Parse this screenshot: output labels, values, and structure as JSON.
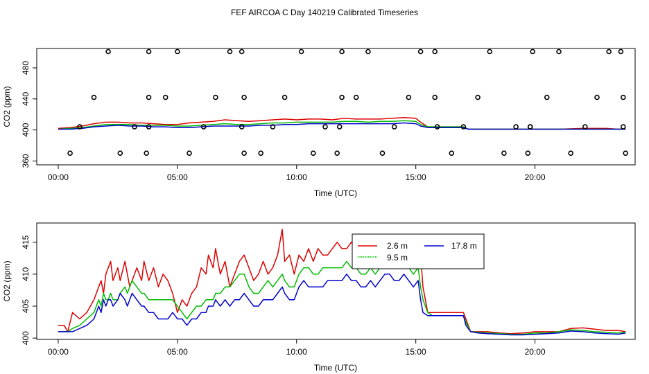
{
  "title": "FEF AIRCOA C  Day 140219  Calibrated Timeseries",
  "colors": {
    "series_2_6": "#dd0000",
    "series_9_5": "#00bb00",
    "series_17_8": "#0000cc",
    "axis": "#000000",
    "markers": "#000000"
  },
  "chart_data": [
    {
      "type": "scatter+line",
      "xlabel": "Time (UTC)",
      "ylabel": "CO2 (ppm)",
      "xlim": [
        -0.9,
        24.2
      ],
      "ylim": [
        355,
        505
      ],
      "xticks": [
        0,
        5,
        10,
        15,
        20
      ],
      "xtick_labels": [
        "00:00",
        "05:00",
        "10:00",
        "15:00",
        "20:00"
      ],
      "yticks": [
        360,
        400,
        440,
        480
      ],
      "ytick_labels": [
        "360",
        "400",
        "440",
        "480"
      ],
      "series": [
        {
          "name": "2.6 m",
          "color": "#dd0000",
          "x": [
            0,
            0.5,
            1,
            1.5,
            2,
            2.5,
            3,
            3.5,
            4,
            4.5,
            5,
            5.5,
            6,
            6.5,
            7,
            7.5,
            8,
            8.5,
            9,
            9.5,
            10,
            10.5,
            11,
            11.5,
            12,
            12.5,
            13,
            13.5,
            14,
            14.5,
            15,
            15.2,
            15.5,
            16,
            16.5,
            17,
            17.2,
            18,
            19,
            20,
            21,
            22,
            22.5,
            23,
            23.5,
            23.8
          ],
          "y": [
            402,
            403,
            405,
            408,
            410,
            410,
            409,
            409,
            408,
            407,
            407,
            409,
            410,
            411,
            413,
            412,
            411,
            412,
            413,
            414,
            413,
            414,
            414,
            413,
            415,
            414,
            414,
            414,
            415,
            416,
            415,
            410,
            404,
            404,
            404,
            404,
            401,
            401,
            401,
            401,
            401,
            402,
            402,
            402,
            401,
            401
          ]
        },
        {
          "name": "9.5 m",
          "color": "#00bb00",
          "x": [
            0,
            0.5,
            1,
            1.5,
            2,
            2.5,
            3,
            3.5,
            4,
            4.5,
            5,
            5.5,
            6,
            6.5,
            7,
            7.5,
            8,
            8.5,
            9,
            9.5,
            10,
            10.5,
            11,
            11.5,
            12,
            12.5,
            13,
            13.5,
            14,
            14.5,
            15,
            15.2,
            15.5,
            16,
            16.5,
            17,
            17.2,
            18,
            19,
            20,
            21,
            22,
            22.5,
            23,
            23.5,
            23.8
          ],
          "y": [
            401,
            402,
            403,
            405,
            407,
            407,
            407,
            406,
            406,
            406,
            405,
            405,
            406,
            407,
            408,
            407,
            407,
            408,
            409,
            409,
            410,
            410,
            410,
            410,
            411,
            411,
            410,
            411,
            411,
            412,
            411,
            407,
            404,
            404,
            404,
            404,
            401,
            401,
            401,
            401,
            401,
            401,
            401,
            401,
            401,
            401
          ]
        },
        {
          "name": "17.8 m",
          "color": "#0000cc",
          "x": [
            0,
            0.5,
            1,
            1.5,
            2,
            2.5,
            3,
            3.5,
            4,
            4.5,
            5,
            5.5,
            6,
            6.5,
            7,
            7.5,
            8,
            8.5,
            9,
            9.5,
            10,
            10.5,
            11,
            11.5,
            12,
            12.5,
            13,
            13.5,
            14,
            14.5,
            15,
            15.2,
            15.5,
            16,
            16.5,
            17,
            17.2,
            18,
            19,
            20,
            21,
            22,
            22.5,
            23,
            23.5,
            23.8
          ],
          "y": [
            401,
            401,
            402,
            404,
            405,
            406,
            405,
            405,
            404,
            404,
            403,
            403,
            404,
            405,
            405,
            405,
            405,
            406,
            406,
            407,
            407,
            408,
            408,
            408,
            408,
            408,
            408,
            408,
            408,
            409,
            408,
            405,
            403,
            403,
            403,
            403,
            401,
            401,
            401,
            401,
            401,
            401,
            401,
            401,
            401,
            401
          ]
        }
      ],
      "markers": {
        "x": [
          0.5,
          0.9,
          1.5,
          2.1,
          2.6,
          3.2,
          3.7,
          3.8,
          3.8,
          3.8,
          4.5,
          5.0,
          5.5,
          6.1,
          6.6,
          7.2,
          7.7,
          7.7,
          7.8,
          7.8,
          8.5,
          9.0,
          9.5,
          10.2,
          10.7,
          11.2,
          11.7,
          11.8,
          11.9,
          11.9,
          12.5,
          13.0,
          13.6,
          14.1,
          14.7,
          15.2,
          15.8,
          15.8,
          15.9,
          16.5,
          17.0,
          17.6,
          18.1,
          18.7,
          19.2,
          19.7,
          19.8,
          19.8,
          19.9,
          20.5,
          21.0,
          21.5,
          22.1,
          22.6,
          23.1,
          23.6,
          23.7,
          23.7,
          23.8
        ],
        "y": [
          370,
          404,
          442,
          501,
          370,
          404,
          370,
          442,
          404,
          501,
          442,
          501,
          370,
          404,
          442,
          501,
          404,
          501,
          442,
          370,
          370,
          404,
          442,
          501,
          370,
          404,
          370,
          404,
          442,
          501,
          442,
          501,
          370,
          404,
          442,
          501,
          442,
          501,
          404,
          370,
          404,
          442,
          501,
          370,
          404,
          370,
          404,
          404,
          501,
          442,
          501,
          370,
          404,
          442,
          501,
          501,
          442,
          404,
          370
        ]
      }
    },
    {
      "type": "line",
      "xlabel": "Time (UTC)",
      "ylabel": "CO2 (ppm)",
      "xlim": [
        -0.9,
        24.2
      ],
      "ylim": [
        399.8,
        418
      ],
      "xticks": [
        0,
        5,
        10,
        15,
        20
      ],
      "xtick_labels": [
        "00:00",
        "05:00",
        "10:00",
        "15:00",
        "20:00"
      ],
      "yticks": [
        400,
        405,
        410,
        415
      ],
      "ytick_labels": [
        "400",
        "405",
        "410",
        "415"
      ],
      "series": [
        {
          "name": "2.6 m",
          "color": "#dd0000",
          "x": [
            0,
            0.25,
            0.4,
            0.6,
            0.9,
            1.2,
            1.5,
            1.7,
            1.8,
            1.9,
            2.0,
            2.1,
            2.2,
            2.3,
            2.5,
            2.6,
            2.8,
            2.9,
            3.0,
            3.1,
            3.3,
            3.5,
            3.6,
            3.8,
            4.0,
            4.2,
            4.4,
            4.6,
            4.8,
            5.0,
            5.2,
            5.4,
            5.6,
            5.8,
            6.0,
            6.2,
            6.3,
            6.5,
            6.6,
            6.8,
            7.0,
            7.2,
            7.4,
            7.6,
            7.8,
            8.0,
            8.2,
            8.4,
            8.6,
            8.8,
            9.0,
            9.2,
            9.4,
            9.5,
            9.7,
            9.9,
            10.1,
            10.3,
            10.5,
            10.7,
            10.9,
            11.1,
            11.3,
            11.5,
            11.7,
            11.9,
            12.1,
            12.3,
            12.5,
            12.7,
            12.9,
            13.1,
            13.3,
            13.5,
            13.7,
            13.9,
            14.1,
            14.3,
            14.5,
            14.7,
            14.9,
            15.1,
            15.2,
            15.3,
            15.5,
            15.7,
            16.0,
            16.5,
            17.0,
            17.1,
            17.3,
            17.6,
            18.0,
            18.5,
            19.0,
            19.5,
            20.0,
            20.5,
            21.0,
            21.5,
            22.0,
            22.5,
            23.0,
            23.5,
            23.8
          ],
          "y": [
            402,
            402,
            401,
            404,
            403,
            404,
            406,
            408,
            409,
            407,
            410,
            411,
            412,
            409,
            411,
            409,
            412,
            410,
            408,
            409,
            411,
            409,
            412,
            409,
            411,
            408,
            410,
            409,
            407,
            404,
            406,
            405,
            407,
            408,
            411,
            410,
            413,
            411,
            414,
            410,
            412,
            408,
            410,
            412,
            413,
            411,
            409,
            410,
            412,
            410,
            411,
            413,
            417,
            412,
            413,
            410,
            413,
            412,
            414,
            412,
            414,
            413,
            413,
            414,
            415,
            414,
            414,
            415,
            414,
            414,
            413,
            415,
            414,
            414,
            416,
            414,
            414,
            415,
            416,
            414,
            412,
            416,
            413,
            408,
            404,
            404,
            404,
            404,
            404,
            403,
            401,
            401,
            401,
            400.8,
            400.7,
            400.8,
            401,
            401,
            401,
            401.5,
            401.6,
            401.4,
            401.2,
            401.2,
            401
          ]
        },
        {
          "name": "9.5 m",
          "color": "#00bb00",
          "x": [
            0,
            0.25,
            0.4,
            0.6,
            0.9,
            1.2,
            1.5,
            1.7,
            1.8,
            1.9,
            2.0,
            2.1,
            2.2,
            2.3,
            2.5,
            2.6,
            2.8,
            2.9,
            3.0,
            3.1,
            3.3,
            3.5,
            3.6,
            3.8,
            4.0,
            4.2,
            4.4,
            4.6,
            4.8,
            5.0,
            5.2,
            5.4,
            5.6,
            5.8,
            6.0,
            6.2,
            6.3,
            6.5,
            6.6,
            6.8,
            7.0,
            7.2,
            7.4,
            7.6,
            7.8,
            8.0,
            8.2,
            8.4,
            8.6,
            8.8,
            9.0,
            9.2,
            9.4,
            9.5,
            9.7,
            9.9,
            10.1,
            10.3,
            10.5,
            10.7,
            10.9,
            11.1,
            11.3,
            11.5,
            11.7,
            11.9,
            12.1,
            12.3,
            12.5,
            12.7,
            12.9,
            13.1,
            13.3,
            13.5,
            13.7,
            13.9,
            14.1,
            14.3,
            14.5,
            14.7,
            14.9,
            15.1,
            15.2,
            15.3,
            15.5,
            15.7,
            16.0,
            16.5,
            17.0,
            17.1,
            17.3,
            17.6,
            18.0,
            18.5,
            19.0,
            19.5,
            20.0,
            20.5,
            21.0,
            21.5,
            22.0,
            22.5,
            23.0,
            23.5,
            23.8
          ],
          "y": [
            401,
            401,
            401,
            401.5,
            402,
            403,
            404,
            406,
            405,
            407,
            406,
            406,
            407,
            406,
            406,
            407,
            408,
            407,
            408,
            409,
            408,
            407,
            407,
            406,
            406,
            406,
            406,
            406,
            406,
            405,
            404,
            403,
            404,
            405,
            405,
            406,
            406,
            406,
            407,
            407,
            408,
            408,
            409,
            410,
            410,
            408,
            407,
            407,
            408,
            409,
            408,
            409,
            410,
            409,
            408,
            408,
            410,
            411,
            411,
            410,
            410,
            411,
            411,
            411,
            411,
            411,
            412,
            411,
            411,
            410,
            410,
            411,
            410,
            411,
            412,
            412,
            411,
            411,
            412,
            411,
            410,
            411,
            408,
            406,
            404,
            403.5,
            403.5,
            403.5,
            403.5,
            402.5,
            401,
            400.9,
            400.8,
            400.7,
            400.6,
            400.6,
            400.8,
            400.8,
            401,
            401.3,
            401.2,
            401,
            400.9,
            400.8,
            400.9
          ]
        },
        {
          "name": "17.8 m",
          "color": "#0000cc",
          "x": [
            0,
            0.25,
            0.4,
            0.6,
            0.9,
            1.2,
            1.5,
            1.7,
            1.8,
            1.9,
            2.0,
            2.1,
            2.2,
            2.3,
            2.5,
            2.6,
            2.8,
            2.9,
            3.0,
            3.1,
            3.3,
            3.5,
            3.6,
            3.8,
            4.0,
            4.2,
            4.4,
            4.6,
            4.8,
            5.0,
            5.2,
            5.4,
            5.6,
            5.8,
            6.0,
            6.2,
            6.3,
            6.5,
            6.6,
            6.8,
            7.0,
            7.2,
            7.4,
            7.6,
            7.8,
            8.0,
            8.2,
            8.4,
            8.6,
            8.8,
            9.0,
            9.2,
            9.4,
            9.5,
            9.7,
            9.9,
            10.1,
            10.3,
            10.5,
            10.7,
            10.9,
            11.1,
            11.3,
            11.5,
            11.7,
            11.9,
            12.1,
            12.3,
            12.5,
            12.7,
            12.9,
            13.1,
            13.3,
            13.5,
            13.7,
            13.9,
            14.1,
            14.3,
            14.5,
            14.7,
            14.9,
            15.1,
            15.2,
            15.3,
            15.5,
            15.7,
            16.0,
            16.5,
            17.0,
            17.1,
            17.3,
            17.6,
            18.0,
            18.5,
            19.0,
            19.5,
            20.0,
            20.5,
            21.0,
            21.5,
            22.0,
            22.5,
            23.0,
            23.5,
            23.8
          ],
          "y": [
            401,
            401,
            401,
            401,
            401.5,
            402,
            403,
            405,
            404,
            406,
            405,
            406,
            406,
            405,
            406,
            407,
            406,
            405,
            406,
            407,
            406,
            405,
            405,
            404,
            404,
            403,
            403,
            403,
            404,
            403,
            403,
            402,
            403,
            403,
            404,
            404,
            405,
            405,
            406,
            405,
            406,
            405,
            406,
            406,
            407,
            406,
            405,
            405,
            406,
            406,
            406,
            407,
            408,
            407,
            406,
            406,
            408,
            409,
            408,
            408,
            408,
            408,
            409,
            409,
            409,
            409,
            410,
            409,
            409,
            408,
            408,
            409,
            408,
            409,
            410,
            410,
            409,
            409,
            410,
            409,
            408,
            409,
            406,
            404,
            403.5,
            403.5,
            403.5,
            403.5,
            403.5,
            402,
            401,
            400.8,
            400.7,
            400.6,
            400.5,
            400.5,
            400.6,
            400.7,
            400.8,
            401.1,
            401,
            400.8,
            400.7,
            400.6,
            400.8
          ]
        }
      ],
      "legend": {
        "placement": "top-right",
        "entries": [
          "2.6 m",
          "9.5 m",
          "17.8 m"
        ]
      }
    }
  ]
}
